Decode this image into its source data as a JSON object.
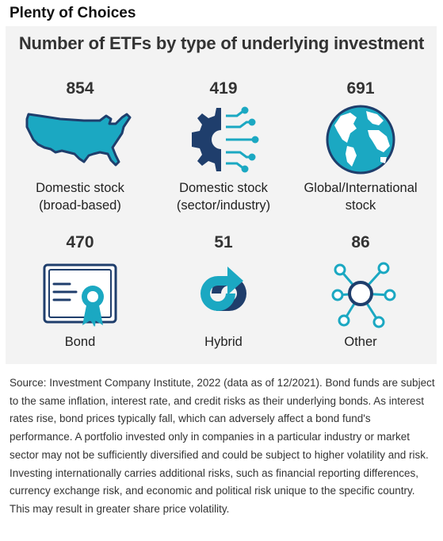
{
  "heading": "Plenty of Choices",
  "title": "Number of ETFs by type of underlying investment",
  "colors": {
    "teal": "#1ba8c2",
    "navy": "#1f3e6c",
    "background": "#f3f3f3"
  },
  "chart_data": {
    "type": "table",
    "categories": [
      {
        "count": "854",
        "label_line1": "Domestic stock",
        "label_line2": "(broad-based)",
        "icon": "us-map-icon"
      },
      {
        "count": "419",
        "label_line1": "Domestic stock",
        "label_line2": "(sector/industry)",
        "icon": "gear-circuit-icon"
      },
      {
        "count": "691",
        "label_line1": "Global/International",
        "label_line2": "stock",
        "icon": "globe-icon"
      },
      {
        "count": "470",
        "label_line1": "Bond",
        "label_line2": "",
        "icon": "certificate-icon"
      },
      {
        "count": "51",
        "label_line1": "Hybrid",
        "label_line2": "",
        "icon": "hybrid-arrows-icon"
      },
      {
        "count": "86",
        "label_line1": "Other",
        "label_line2": "",
        "icon": "network-nodes-icon"
      }
    ]
  },
  "source_text": "Source: Investment Company Institute, 2022 (data as of 12/2021). Bond funds are subject to the same inflation, interest rate, and credit risks as their underlying bonds. As interest rates rise, bond prices typically fall, which can adversely affect a bond fund's performance. A portfolio invested only in companies in a particular industry or market sector may not be sufficiently diversified and could be subject to higher volatility and risk. Investing internationally carries additional risks, such as financial reporting differences, currency exchange risk, and economic and political risk unique to the specific country. This may result in greater share price volatility."
}
